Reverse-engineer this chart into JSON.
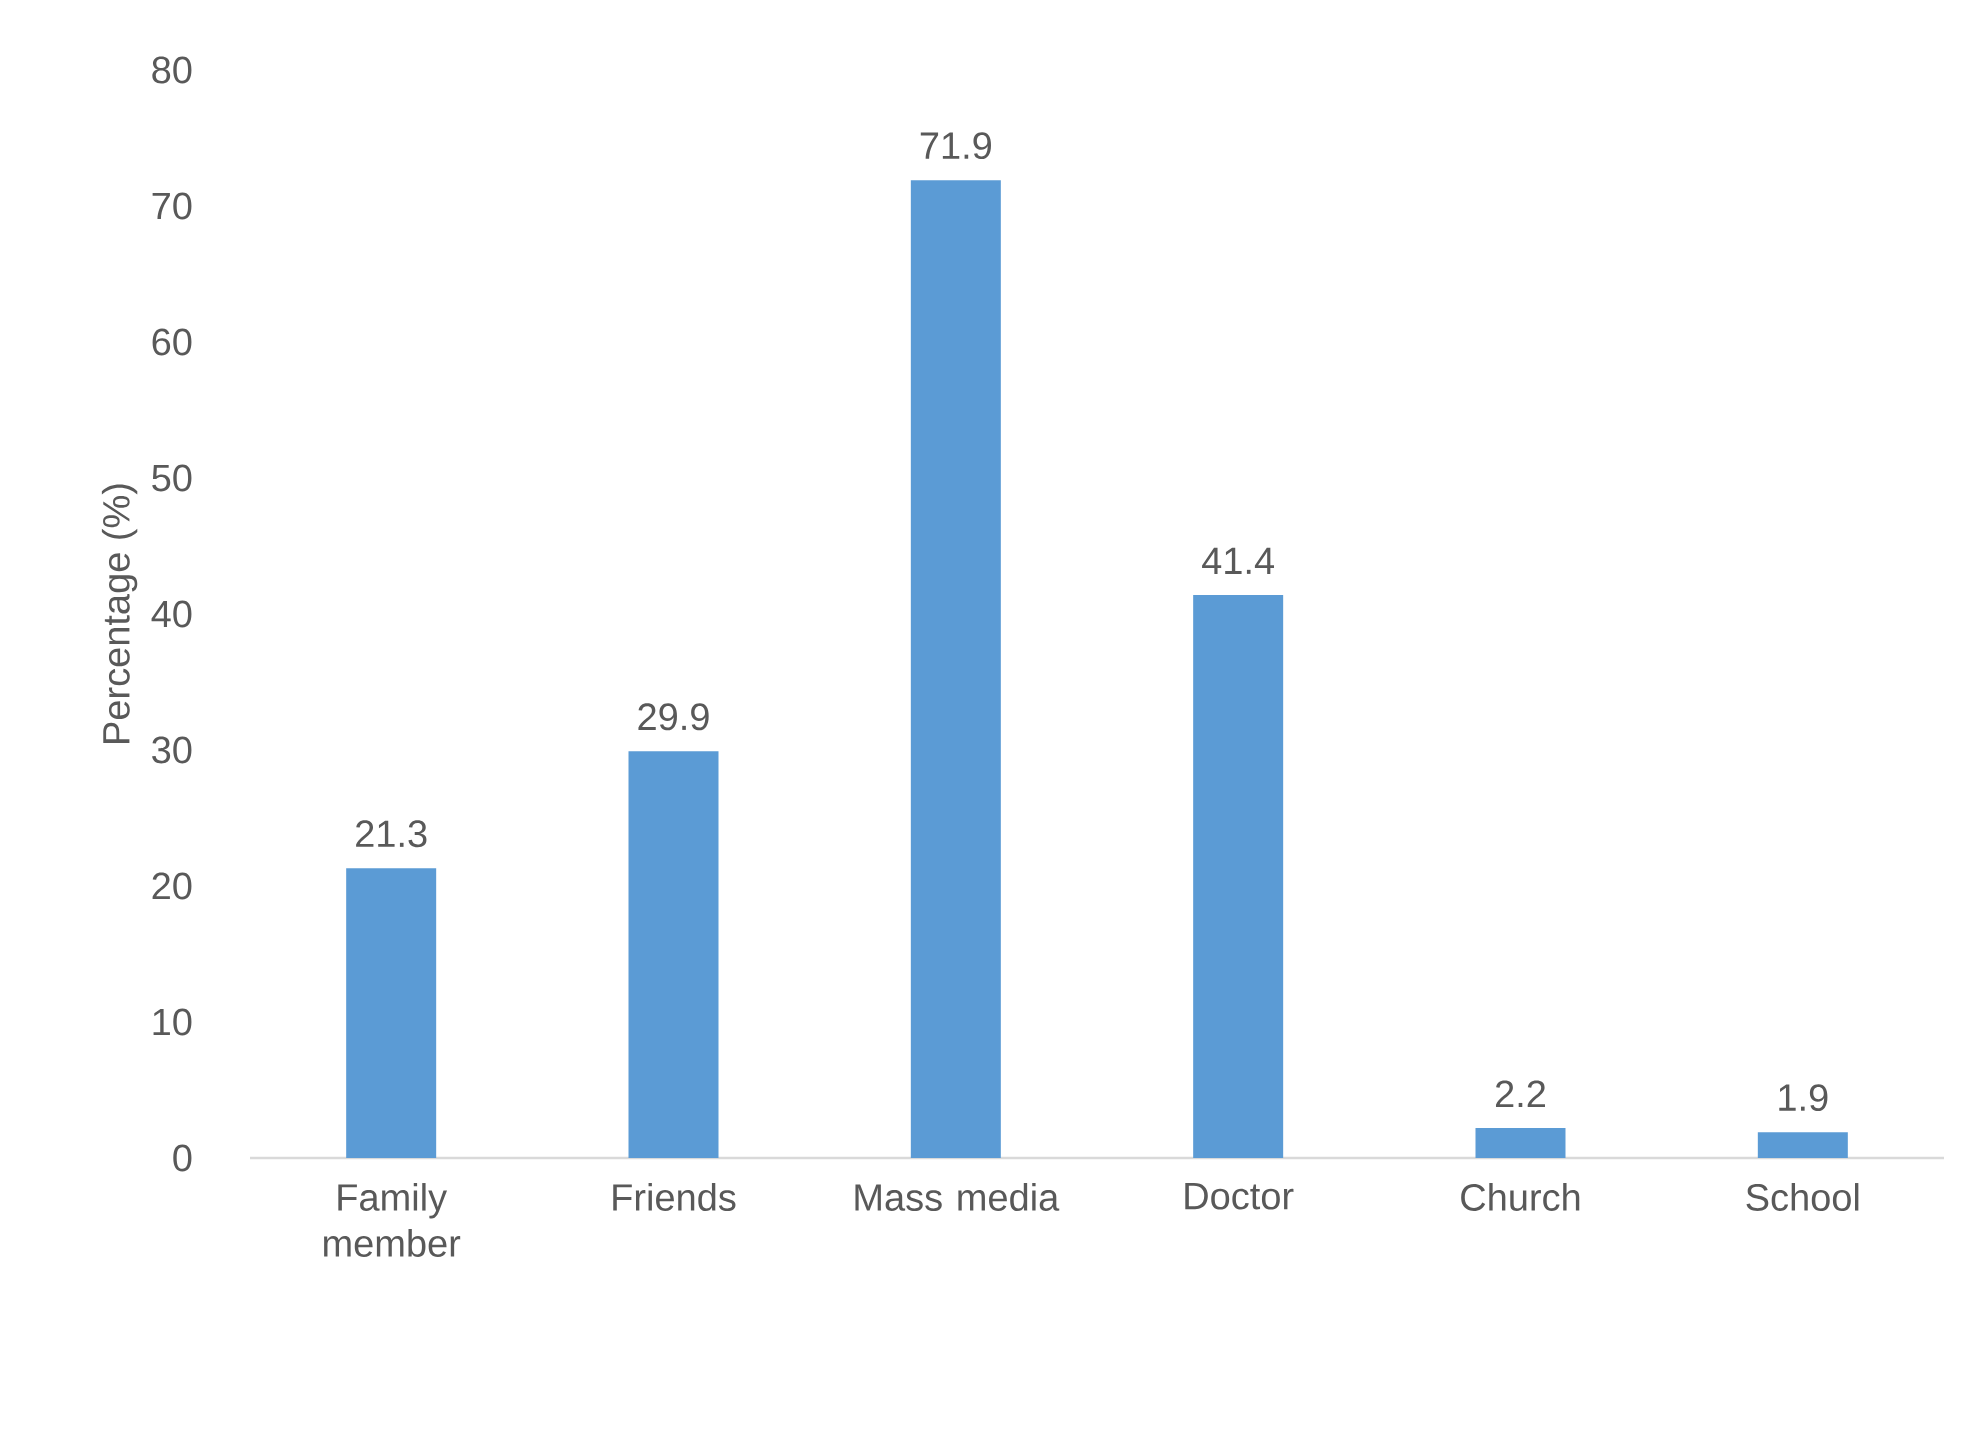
{
  "chart_data": {
    "type": "bar",
    "ylabel": "Percentage (%)",
    "categories": [
      "Family member",
      "Friends",
      "Mass media",
      "Doctor",
      "Church",
      "School"
    ],
    "values": [
      21.3,
      29.9,
      71.9,
      41.4,
      2.2,
      1.9
    ],
    "value_labels": [
      "21.3",
      "29.9",
      "71.9",
      "41.4",
      "2.2",
      "1.9"
    ],
    "color": "#5b9bd5",
    "ylim": [
      0,
      80
    ],
    "yticks": [
      0,
      10,
      20,
      30,
      40,
      50,
      60,
      70,
      80
    ],
    "grid": false
  }
}
